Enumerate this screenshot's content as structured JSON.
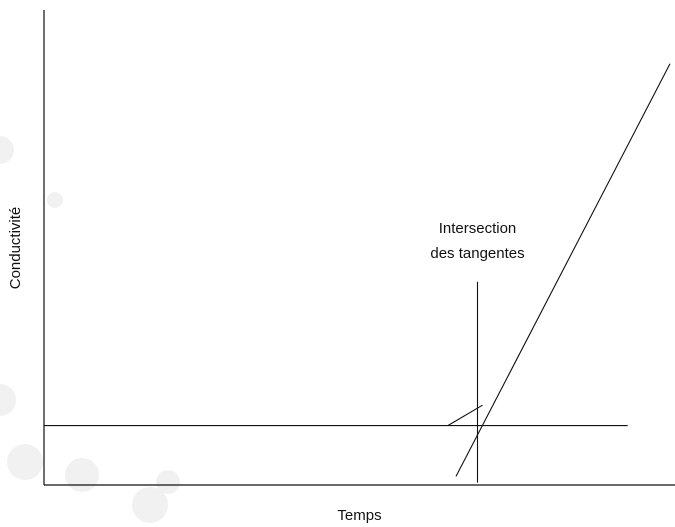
{
  "chart_data": {
    "type": "line",
    "title": "",
    "xlabel": "Temps",
    "ylabel": "Conductivité",
    "xlim": [
      0,
      100
    ],
    "ylim": [
      0,
      100
    ],
    "grid": false,
    "legend": "none",
    "series": [
      {
        "x": [
          0,
          92.5
        ],
        "y": [
          12.5,
          12.5
        ]
      },
      {
        "x": [
          65.3,
          99.2
        ],
        "y": [
          1.8,
          88.7
        ]
      },
      {
        "x": [
          64,
          69.5
        ],
        "y": [
          12.5,
          16.8
        ]
      }
    ],
    "markers": [
      {
        "type": "vline",
        "x": 68.7,
        "y_range": [
          0.5,
          42.8
        ]
      }
    ],
    "annotations": [
      {
        "lines": [
          "Intersection",
          "des tangentes"
        ],
        "x": 68.7,
        "y": 52
      }
    ]
  },
  "colors": {
    "line": "#111111",
    "text": "#111111",
    "decoration": "#f1f1f1"
  }
}
